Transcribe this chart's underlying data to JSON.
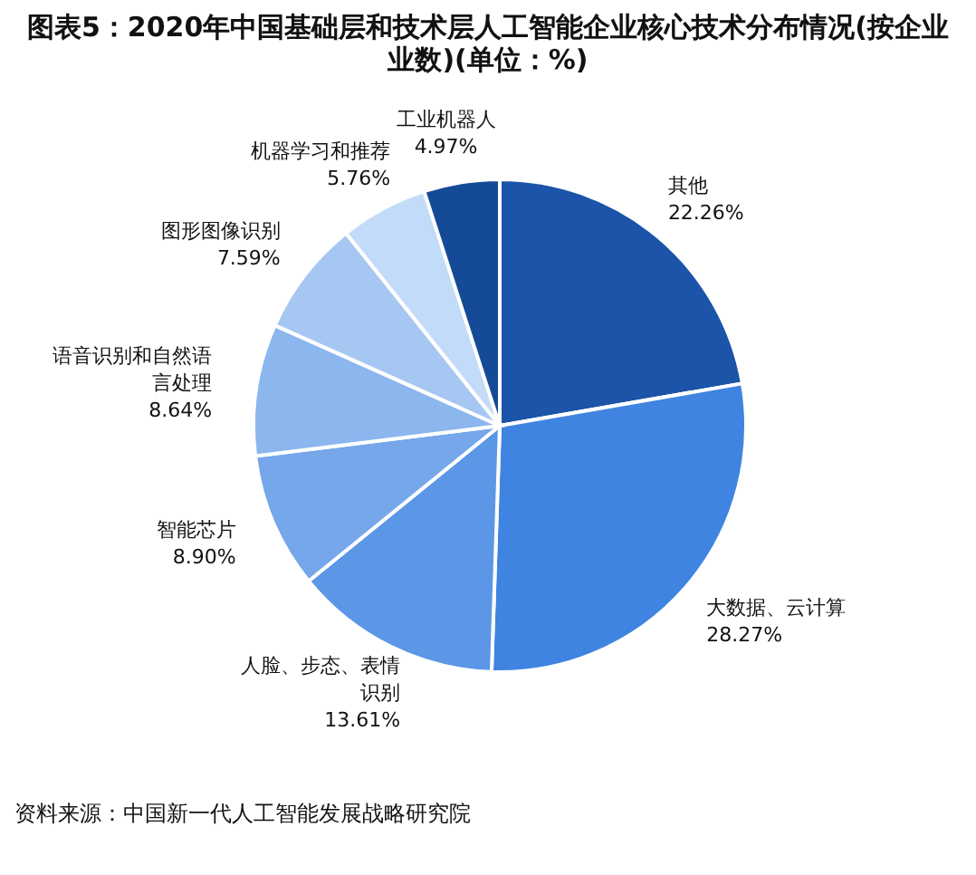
{
  "chart_data": {
    "type": "pie",
    "title": "图表5：2020年中国基础层和技术层人工智能企业核心技术分布情况(按企业业数)(单位：%)",
    "categories": [
      "其他",
      "大数据、云计算",
      "人脸、步态、表情识别",
      "智能芯片",
      "语音识别和自然语言处理",
      "图形图像识别",
      "机器学习和推荐",
      "工业机器人"
    ],
    "values": [
      22.26,
      28.27,
      13.61,
      8.9,
      8.64,
      7.59,
      5.76,
      4.97
    ],
    "colors": [
      "#1b54a8",
      "#3f84e0",
      "#5b97e6",
      "#75a7ea",
      "#8cb6ee",
      "#a6c7f2",
      "#c2dbf8",
      "#154a96"
    ],
    "value_labels": [
      "22.26%",
      "28.27%",
      "13.61%",
      "8.90%",
      "8.64%",
      "7.59%",
      "5.76%",
      "4.97%"
    ],
    "annotations": [
      "资料来源：中国新一代人工智能发展战略研究院"
    ]
  }
}
